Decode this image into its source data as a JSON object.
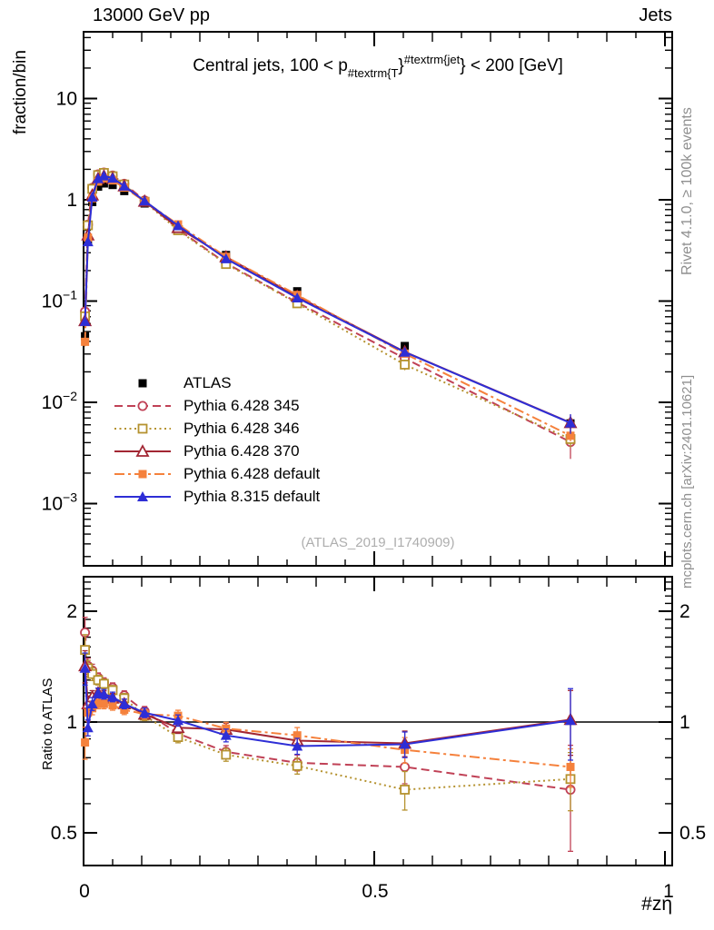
{
  "header": {
    "left": "13000 GeV pp",
    "right": "Jets"
  },
  "side_notes": {
    "top": "Rivet 4.1.0, ≥ 100k events",
    "bottom": "mcplots.cern.ch [arXiv:2401.10621]"
  },
  "main_panel": {
    "y_title": "fraction/bin",
    "watermark": "(ATLAS_2019_I1740909)",
    "title_segments": [
      {
        "style": "normal",
        "text": "Central jets, 100 < p"
      },
      {
        "style": "sub",
        "text": "#textrm{T"
      },
      {
        "style": "normal",
        "text": "}"
      },
      {
        "style": "sup",
        "text": "#textrm{jet"
      },
      {
        "style": "normal",
        "text": "} < 200 [GeV]"
      }
    ]
  },
  "ratio_panel": {
    "y_title": "Ratio to ATLAS"
  },
  "x_axis": {
    "title": "#zη"
  },
  "chart_data": {
    "type": "line",
    "title": "Central jets, 100 < p_{#textrm{T}}^{#textrm{jet}} < 200 [GeV]",
    "xlabel": "#zη",
    "ylabel": "fraction/bin",
    "ratio_ylabel": "Ratio to ATLAS",
    "legend_position": "middle-left",
    "grid": false,
    "x_range": [
      0,
      1.0125
    ],
    "main_y_scale": "log",
    "main_y_range": [
      0.00024,
      45
    ],
    "ratio_y_scale": "log",
    "ratio_y_range": [
      0.407,
      2.48
    ],
    "x": [
      0.0025,
      0.0075,
      0.015,
      0.025,
      0.035,
      0.05,
      0.07,
      0.105,
      0.1625,
      0.245,
      0.3675,
      0.5525,
      0.8375
    ],
    "reference": {
      "name": "ATLAS",
      "color": "#000000",
      "marker": "square-filled",
      "values": [
        0.045,
        0.4,
        0.95,
        1.35,
        1.45,
        1.4,
        1.22,
        0.92,
        0.55,
        0.285,
        0.125,
        0.036,
        0.0062
      ],
      "err_frac": [
        0.08,
        0.04,
        0.02,
        0.02,
        0.02,
        0.02,
        0.02,
        0.02,
        0.02,
        0.03,
        0.03,
        0.05,
        0.12
      ]
    },
    "series": [
      {
        "name": "Pythia 6.428 345",
        "color": "#c04156",
        "line": "dashed",
        "marker": "circle-open",
        "ratio": [
          1.75,
          1.42,
          1.38,
          1.32,
          1.28,
          1.24,
          1.18,
          1.07,
          0.93,
          0.83,
          0.775,
          0.755,
          0.655
        ],
        "err_frac": [
          0.1,
          0.05,
          0.04,
          0.03,
          0.03,
          0.03,
          0.03,
          0.03,
          0.035,
          0.04,
          0.05,
          0.1,
          0.32
        ]
      },
      {
        "name": "Pythia 6.428 346",
        "color": "#b5922f",
        "line": "dotted",
        "marker": "square-open",
        "ratio": [
          1.57,
          1.4,
          1.35,
          1.3,
          1.27,
          1.22,
          1.16,
          1.04,
          0.91,
          0.815,
          0.76,
          0.655,
          0.7
        ],
        "err_frac": [
          0.1,
          0.05,
          0.04,
          0.03,
          0.03,
          0.03,
          0.03,
          0.03,
          0.035,
          0.04,
          0.05,
          0.12,
          0.18
        ]
      },
      {
        "name": "Pythia 6.428 370",
        "color": "#a22633",
        "line": "solid",
        "marker": "triangle-open",
        "ratio": [
          1.42,
          1.12,
          1.17,
          1.2,
          1.18,
          1.16,
          1.12,
          1.05,
          0.965,
          0.955,
          0.89,
          0.875,
          1.015
        ],
        "err_frac": [
          0.1,
          0.05,
          0.04,
          0.03,
          0.03,
          0.03,
          0.03,
          0.03,
          0.035,
          0.04,
          0.05,
          0.08,
          0.2
        ]
      },
      {
        "name": "Pythia 6.428 default",
        "color": "#f5813c",
        "line": "dashdot",
        "marker": "square-filled",
        "ratio": [
          0.88,
          1.06,
          1.09,
          1.12,
          1.12,
          1.11,
          1.08,
          1.05,
          1.04,
          0.96,
          0.92,
          0.84,
          0.755
        ],
        "err_frac": [
          0.1,
          0.05,
          0.04,
          0.03,
          0.03,
          0.03,
          0.03,
          0.03,
          0.035,
          0.04,
          0.05,
          0.08,
          0.12
        ]
      },
      {
        "name": "Pythia 8.315 default",
        "color": "#2e2ed6",
        "line": "solid",
        "marker": "triangle-filled",
        "ratio": [
          1.4,
          0.965,
          1.12,
          1.2,
          1.19,
          1.17,
          1.12,
          1.06,
          1.01,
          0.92,
          0.86,
          0.87,
          1.01
        ],
        "err_frac": [
          0.1,
          0.05,
          0.04,
          0.03,
          0.03,
          0.03,
          0.03,
          0.03,
          0.035,
          0.04,
          0.05,
          0.08,
          0.22
        ]
      }
    ],
    "main_yticks": [
      {
        "v": 10,
        "mant": "10",
        "exp": ""
      },
      {
        "v": 1,
        "mant": "1",
        "exp": ""
      },
      {
        "v": 0.1,
        "mant": "10",
        "exp": "−1"
      },
      {
        "v": 0.01,
        "mant": "10",
        "exp": "−2"
      },
      {
        "v": 0.001,
        "mant": "10",
        "exp": "−3"
      }
    ],
    "ratio_yticks": [
      {
        "v": 2,
        "label": "2"
      },
      {
        "v": 1,
        "label": "1"
      },
      {
        "v": 0.5,
        "label": "0.5"
      }
    ],
    "xticks": [
      {
        "v": 0,
        "label": "0"
      },
      {
        "v": 0.5,
        "label": "0.5"
      },
      {
        "v": 1,
        "label": "1"
      }
    ]
  }
}
